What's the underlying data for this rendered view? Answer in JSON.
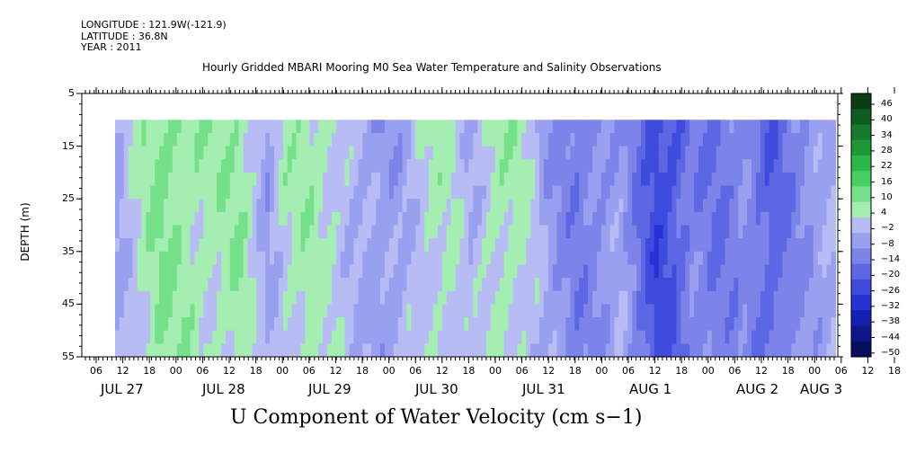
{
  "header": {
    "longitude": "LONGITUDE : 121.9W(-121.9)",
    "latitude": "LATITUDE : 36.8N",
    "year": "YEAR : 2011"
  },
  "chart_data": {
    "type": "heatmap",
    "title": "Hourly Gridded MBARI Mooring M0 Sea Water Temperature and Salinity Observations",
    "xlabel": "U Component of Water Velocity (cm s−1)",
    "ylabel": "DEPTH (m)",
    "ylim": [
      55,
      5
    ],
    "y_ticks": [
      "5",
      "15",
      "25",
      "35",
      "45",
      "55"
    ],
    "x_hour_ticks": [
      "06",
      "12",
      "18",
      "00",
      "06",
      "12",
      "18",
      "00",
      "06",
      "12",
      "18",
      "00",
      "06",
      "12",
      "18",
      "00",
      "06",
      "12",
      "18",
      "00",
      "06",
      "12",
      "18",
      "00",
      "06",
      "12",
      "18",
      "00",
      "06",
      "12",
      "18",
      "00"
    ],
    "x_day_labels": [
      "JUL 27",
      "JUL 28",
      "JUL 29",
      "JUL 30",
      "JUL 31",
      "AUG  1",
      "AUG  2",
      "AUG  3"
    ],
    "depth_range": [
      10,
      55
    ],
    "colorbar": {
      "ticks": [
        "46",
        "40",
        "34",
        "28",
        "22",
        "16",
        "10",
        "4",
        "−2",
        "−8",
        "−14",
        "−20",
        "−26",
        "−32",
        "−38",
        "−44",
        "−50"
      ],
      "range": [
        -50,
        50
      ]
    },
    "time_profile_approx": [
      {
        "hour": 0,
        "u": -3
      },
      {
        "hour": 4,
        "u": 3
      },
      {
        "hour": 10,
        "u": 11
      },
      {
        "hour": 16,
        "u": 8
      },
      {
        "hour": 22,
        "u": 6
      },
      {
        "hour": 28,
        "u": 9
      },
      {
        "hour": 34,
        "u": -4
      },
      {
        "hour": 38,
        "u": 5
      },
      {
        "hour": 44,
        "u": 7
      },
      {
        "hour": 50,
        "u": 3
      },
      {
        "hour": 56,
        "u": -3
      },
      {
        "hour": 60,
        "u": -6
      },
      {
        "hour": 64,
        "u": -4
      },
      {
        "hour": 68,
        "u": 2
      },
      {
        "hour": 72,
        "u": 5
      },
      {
        "hour": 76,
        "u": 4
      },
      {
        "hour": 80,
        "u": -2
      },
      {
        "hour": 86,
        "u": 7
      },
      {
        "hour": 92,
        "u": 5
      },
      {
        "hour": 98,
        "u": -6
      },
      {
        "hour": 104,
        "u": -12
      },
      {
        "hour": 110,
        "u": -8
      },
      {
        "hour": 114,
        "u": -4
      },
      {
        "hour": 118,
        "u": -14
      },
      {
        "hour": 122,
        "u": -24
      },
      {
        "hour": 126,
        "u": -20
      },
      {
        "hour": 130,
        "u": -11
      },
      {
        "hour": 136,
        "u": -14
      },
      {
        "hour": 142,
        "u": -9
      },
      {
        "hour": 148,
        "u": -18
      },
      {
        "hour": 154,
        "u": -9
      },
      {
        "hour": 160,
        "u": -4
      },
      {
        "hour": 166,
        "u": -2
      },
      {
        "hour": 170,
        "u": -7
      },
      {
        "hour": 176,
        "u": -1
      },
      {
        "hour": 180,
        "u": -3
      },
      {
        "hour": 186,
        "u": -6
      },
      {
        "hour": 190,
        "u": 3
      },
      {
        "hour": 194,
        "u": 2
      },
      {
        "hour": 199,
        "u": 6
      }
    ]
  }
}
